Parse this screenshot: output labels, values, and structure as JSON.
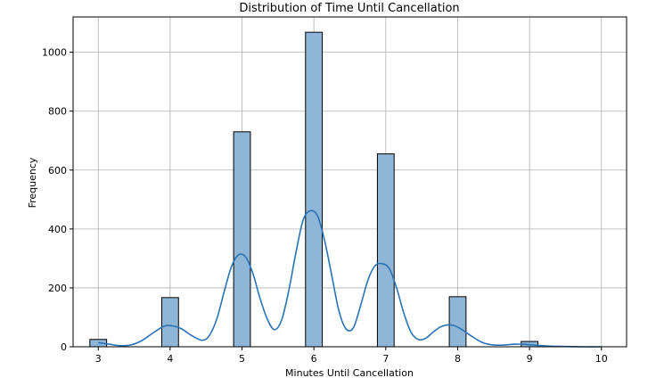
{
  "chart_data": {
    "type": "bar",
    "title": "Distribution of Time Until Cancellation",
    "xlabel": "Minutes Until Cancellation",
    "ylabel": "Frequency",
    "xlim": [
      2.65,
      10.35
    ],
    "ylim": [
      0,
      1120
    ],
    "x_ticks": [
      3,
      4,
      5,
      6,
      7,
      8,
      9,
      10
    ],
    "y_ticks": [
      0,
      200,
      400,
      600,
      800,
      1000
    ],
    "grid": true,
    "bin_width": 0.233,
    "bars": [
      {
        "x": 3,
        "value": 25
      },
      {
        "x": 4,
        "value": 167
      },
      {
        "x": 5,
        "value": 730
      },
      {
        "x": 6,
        "value": 1068
      },
      {
        "x": 7,
        "value": 655
      },
      {
        "x": 8,
        "value": 170
      },
      {
        "x": 9,
        "value": 18
      }
    ],
    "kde_points": [
      [
        3.0,
        14
      ],
      [
        3.15,
        9
      ],
      [
        3.3,
        4
      ],
      [
        3.45,
        6
      ],
      [
        3.6,
        20
      ],
      [
        3.75,
        45
      ],
      [
        3.9,
        68
      ],
      [
        4.0,
        72
      ],
      [
        4.15,
        62
      ],
      [
        4.3,
        38
      ],
      [
        4.45,
        22
      ],
      [
        4.55,
        40
      ],
      [
        4.65,
        95
      ],
      [
        4.75,
        185
      ],
      [
        4.85,
        270
      ],
      [
        4.95,
        312
      ],
      [
        5.05,
        305
      ],
      [
        5.15,
        250
      ],
      [
        5.25,
        165
      ],
      [
        5.35,
        95
      ],
      [
        5.45,
        58
      ],
      [
        5.55,
        90
      ],
      [
        5.65,
        190
      ],
      [
        5.75,
        320
      ],
      [
        5.85,
        430
      ],
      [
        5.95,
        462
      ],
      [
        6.05,
        445
      ],
      [
        6.15,
        360
      ],
      [
        6.25,
        240
      ],
      [
        6.35,
        120
      ],
      [
        6.45,
        60
      ],
      [
        6.55,
        65
      ],
      [
        6.65,
        140
      ],
      [
        6.75,
        225
      ],
      [
        6.85,
        275
      ],
      [
        6.95,
        282
      ],
      [
        7.05,
        265
      ],
      [
        7.15,
        200
      ],
      [
        7.25,
        115
      ],
      [
        7.35,
        50
      ],
      [
        7.45,
        25
      ],
      [
        7.55,
        28
      ],
      [
        7.65,
        48
      ],
      [
        7.75,
        66
      ],
      [
        7.85,
        74
      ],
      [
        7.95,
        72
      ],
      [
        8.05,
        60
      ],
      [
        8.2,
        35
      ],
      [
        8.35,
        14
      ],
      [
        8.5,
        6
      ],
      [
        8.65,
        6
      ],
      [
        8.8,
        9
      ],
      [
        8.95,
        8
      ],
      [
        9.1,
        5
      ],
      [
        9.3,
        2
      ],
      [
        9.5,
        1
      ],
      [
        9.75,
        0
      ],
      [
        10.0,
        0
      ]
    ],
    "colors": {
      "bar_fill": "#8fb6d7",
      "bar_edge": "#000000",
      "kde_line": "#2a73b5",
      "grid": "#b0b0b0",
      "axes": "#000000"
    }
  }
}
